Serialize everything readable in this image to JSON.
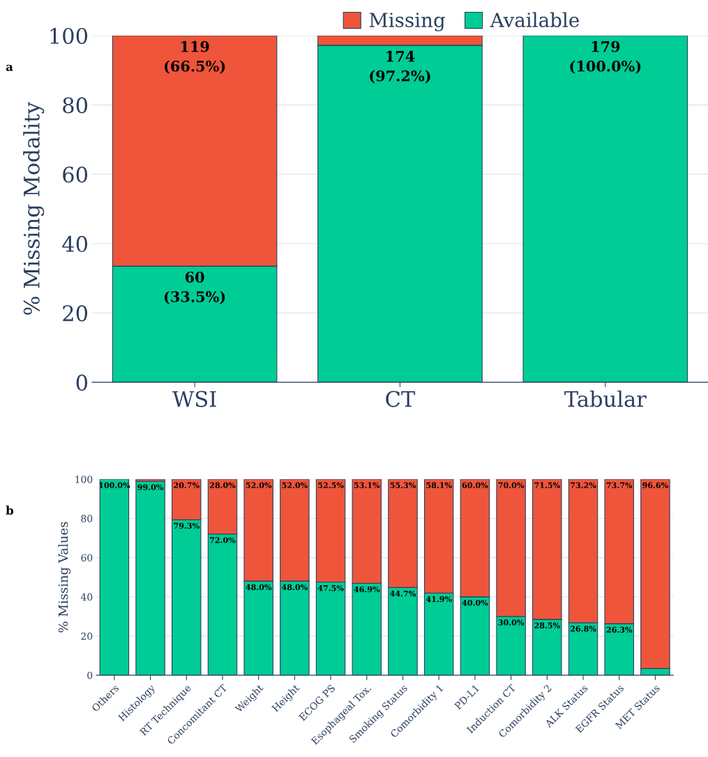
{
  "chart_data": [
    {
      "type": "bar",
      "stacked": true,
      "ylabel": "% Missing Modality",
      "annotations": [
        "a"
      ],
      "categories": [
        "WSI",
        "CT",
        "Tabular"
      ],
      "series": [
        {
          "name": "Available",
          "color": "#00cc96",
          "values": [
            33.5,
            97.2,
            100.0
          ],
          "value_labels": [
            "60\n(33.5%)",
            "174\n(97.2%)",
            "179\n(100.0%)"
          ]
        },
        {
          "name": "Missing",
          "color": "#ef553b",
          "values": [
            66.5,
            2.8,
            0.0
          ],
          "value_labels": [
            "119\n(66.5%)",
            null,
            null
          ]
        }
      ],
      "ylim": [
        0,
        100
      ],
      "yticks": [
        0,
        20,
        40,
        60,
        80,
        100
      ],
      "grid": "y",
      "legend": "top"
    },
    {
      "type": "bar",
      "stacked": true,
      "ylabel": "% Missing Values",
      "annotations": [
        "b"
      ],
      "categories": [
        "Others",
        "Histology",
        "RT Technique",
        "Concomitant CT",
        "Weight",
        "Height",
        "ECOG PS",
        "Esophageal Tox.",
        "Smoking Status",
        "Comorbidity 1",
        "PD-L1",
        "Induction CT",
        "Comorbidity 2",
        "ALK Status",
        "EGFR Status",
        "MET Status"
      ],
      "series": [
        {
          "color": "#00cc96",
          "values": [
            100.0,
            99.0,
            79.3,
            72.0,
            48.0,
            48.0,
            47.5,
            46.9,
            44.7,
            41.9,
            40.0,
            30.0,
            28.5,
            26.8,
            26.3,
            3.4
          ],
          "value_labels": [
            "100.0%",
            "99.0%",
            "79.3%",
            "72.0%",
            "48.0%",
            "48.0%",
            "47.5%",
            "46.9%",
            "44.7%",
            "41.9%",
            "40.0%",
            "30.0%",
            "28.5%",
            "26.8%",
            "26.3%",
            null
          ]
        },
        {
          "color": "#ef553b",
          "values": [
            0.0,
            1.0,
            20.7,
            28.0,
            52.0,
            52.0,
            52.5,
            53.1,
            55.3,
            58.1,
            60.0,
            70.0,
            71.5,
            73.2,
            73.7,
            96.6
          ],
          "value_labels": [
            null,
            null,
            "20.7%",
            "28.0%",
            "52.0%",
            "52.0%",
            "52.5%",
            "53.1%",
            "55.3%",
            "58.1%",
            "60.0%",
            "70.0%",
            "71.5%",
            "73.2%",
            "73.7%",
            "96.6%"
          ]
        }
      ],
      "ylim": [
        0,
        100
      ],
      "yticks": [
        0,
        20,
        40,
        60,
        80,
        100
      ],
      "grid": "y"
    }
  ]
}
